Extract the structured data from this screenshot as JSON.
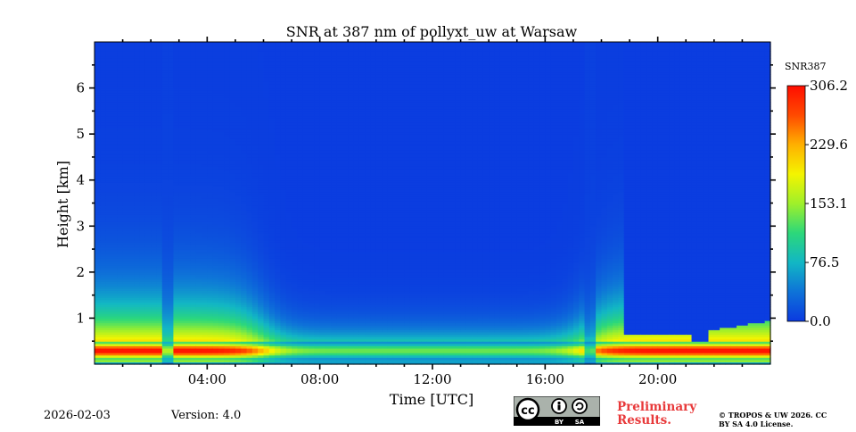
{
  "chart_data": {
    "type": "heatmap",
    "title": "SNR at 387 nm of pollyxt_uw at Warsaw",
    "xlabel": "Time [UTC]",
    "ylabel": "Height [km]",
    "xlim_hours": [
      0,
      24
    ],
    "ylim_km": [
      0,
      7
    ],
    "x_ticks": [
      {
        "hour": 4,
        "label": "04:00"
      },
      {
        "hour": 8,
        "label": "08:00"
      },
      {
        "hour": 12,
        "label": "12:00"
      },
      {
        "hour": 16,
        "label": "16:00"
      },
      {
        "hour": 20,
        "label": "20:00"
      }
    ],
    "y_ticks": [
      {
        "km": 1,
        "label": "1"
      },
      {
        "km": 2,
        "label": "2"
      },
      {
        "km": 3,
        "label": "3"
      },
      {
        "km": 4,
        "label": "4"
      },
      {
        "km": 5,
        "label": "5"
      },
      {
        "km": 6,
        "label": "6"
      }
    ],
    "colorbar": {
      "label": "SNR387",
      "min": 0.0,
      "max": 306.2,
      "ticks": [
        {
          "value": 0.0,
          "label": "0.0"
        },
        {
          "value": 76.5,
          "label": "76.5"
        },
        {
          "value": 153.1,
          "label": "153.1"
        },
        {
          "value": 229.6,
          "label": "229.6"
        },
        {
          "value": 306.2,
          "label": "306.2"
        }
      ]
    },
    "colormap": [
      "#0b3ae0",
      "#0e73d8",
      "#12b7c4",
      "#2cd87a",
      "#9ff02a",
      "#f4f400",
      "#ffb000",
      "#ff4a00",
      "#ff0d00"
    ],
    "background_snr": 2,
    "features": {
      "near_ground_peak_km": 0.3,
      "night_low_snr_window_hours": [
        6,
        17.5
      ],
      "data_gaps_hours": [
        2.6,
        17.6
      ],
      "afternoon_layer_top_km": 0.65
    }
  },
  "footer": {
    "date": "2026-02-03",
    "version": "Version: 4.0",
    "preliminary": "Preliminary Results.",
    "copyright": "© TROPOS & UW 2026. CC BY SA 4.0 License.",
    "license_badge": {
      "cc": "cc",
      "by": "BY",
      "sa": "SA"
    }
  }
}
